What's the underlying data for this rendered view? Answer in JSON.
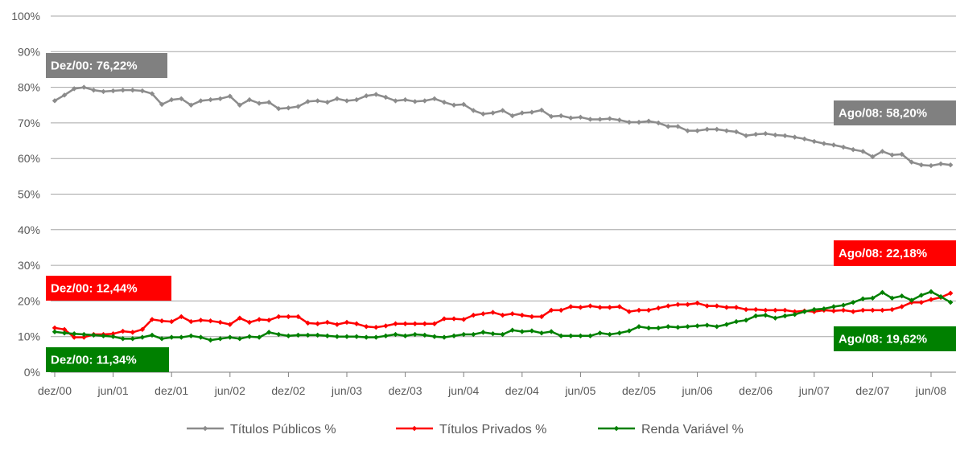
{
  "chart_data": {
    "type": "line",
    "title": "",
    "xlabel": "",
    "ylabel": "",
    "x_start": "dez/00",
    "x_end": "ago/08",
    "xtick_labels": [
      "dez/00",
      "jun/01",
      "dez/01",
      "jun/02",
      "dez/02",
      "jun/03",
      "dez/03",
      "jun/04",
      "dez/04",
      "jun/05",
      "dez/05",
      "jun/06",
      "dez/06",
      "jun/07",
      "dez/07",
      "jun/08"
    ],
    "ytick_labels": [
      "0%",
      "10%",
      "20%",
      "30%",
      "40%",
      "50%",
      "60%",
      "70%",
      "80%",
      "90%",
      "100%"
    ],
    "ylim": [
      0,
      100
    ],
    "grid": true,
    "legend_position": "bottom",
    "series": [
      {
        "name": "Títulos Públicos %",
        "color": "#8c8c8c",
        "values": [
          76.22,
          77.8,
          79.6,
          80.0,
          79.2,
          78.8,
          79.0,
          79.2,
          79.2,
          79.0,
          78.2,
          75.2,
          76.5,
          76.8,
          75.0,
          76.2,
          76.5,
          76.8,
          77.5,
          75.0,
          76.5,
          75.5,
          75.8,
          74.0,
          74.2,
          74.6,
          76.0,
          76.2,
          75.8,
          76.8,
          76.2,
          76.5,
          77.6,
          78.0,
          77.2,
          76.2,
          76.5,
          76.0,
          76.2,
          76.8,
          75.8,
          75.0,
          75.2,
          73.5,
          72.5,
          72.8,
          73.5,
          72.0,
          72.8,
          73.0,
          73.6,
          71.8,
          72.0,
          71.4,
          71.6,
          71.0,
          71.0,
          71.2,
          70.8,
          70.2,
          70.2,
          70.5,
          70.0,
          69.0,
          69.0,
          67.8,
          67.8,
          68.2,
          68.2,
          67.8,
          67.5,
          66.4,
          66.8,
          67.0,
          66.6,
          66.4,
          66.0,
          65.5,
          64.8,
          64.2,
          63.8,
          63.2,
          62.5,
          62.0,
          60.5,
          62.0,
          61.0,
          61.2,
          59.0,
          58.2,
          58.0,
          58.5,
          58.2
        ]
      },
      {
        "name": "Títulos Privados %",
        "color": "#ff0000",
        "values": [
          12.44,
          12.0,
          9.8,
          9.8,
          10.6,
          10.6,
          10.8,
          11.5,
          11.2,
          12.0,
          14.8,
          14.4,
          14.2,
          15.6,
          14.2,
          14.6,
          14.4,
          14.0,
          13.4,
          15.2,
          14.0,
          14.8,
          14.6,
          15.6,
          15.6,
          15.6,
          13.8,
          13.6,
          14.0,
          13.4,
          14.0,
          13.6,
          12.8,
          12.6,
          13.0,
          13.6,
          13.6,
          13.6,
          13.6,
          13.6,
          15.0,
          15.0,
          14.8,
          16.0,
          16.4,
          16.8,
          16.0,
          16.4,
          16.0,
          15.6,
          15.6,
          17.4,
          17.4,
          18.4,
          18.2,
          18.6,
          18.2,
          18.2,
          18.4,
          17.0,
          17.4,
          17.4,
          18.0,
          18.6,
          19.0,
          19.0,
          19.4,
          18.6,
          18.6,
          18.2,
          18.2,
          17.6,
          17.6,
          17.4,
          17.4,
          17.4,
          17.0,
          17.2,
          17.0,
          17.4,
          17.2,
          17.4,
          17.0,
          17.4,
          17.4,
          17.4,
          17.6,
          18.4,
          19.6,
          19.6,
          20.4,
          21.0,
          22.18
        ]
      },
      {
        "name": "Renda Variável %",
        "color": "#008000",
        "values": [
          11.34,
          11.0,
          10.8,
          10.6,
          10.4,
          10.2,
          10.0,
          9.4,
          9.4,
          9.8,
          10.4,
          9.4,
          9.8,
          9.8,
          10.2,
          9.8,
          9.0,
          9.4,
          9.8,
          9.4,
          10.0,
          9.8,
          11.2,
          10.6,
          10.2,
          10.4,
          10.4,
          10.4,
          10.2,
          10.0,
          10.0,
          10.0,
          9.8,
          9.8,
          10.2,
          10.6,
          10.2,
          10.6,
          10.4,
          10.0,
          9.8,
          10.2,
          10.6,
          10.6,
          11.2,
          10.8,
          10.6,
          11.8,
          11.4,
          11.6,
          11.0,
          11.4,
          10.2,
          10.2,
          10.2,
          10.2,
          11.0,
          10.6,
          11.0,
          11.6,
          12.8,
          12.4,
          12.4,
          12.8,
          12.6,
          12.8,
          13.0,
          13.2,
          12.8,
          13.4,
          14.2,
          14.6,
          15.8,
          16.0,
          15.2,
          15.8,
          16.2,
          17.0,
          17.6,
          17.8,
          18.4,
          18.8,
          19.6,
          20.6,
          20.8,
          22.4,
          20.8,
          21.4,
          20.2,
          21.6,
          22.6,
          21.2,
          19.62
        ]
      }
    ],
    "annotations": [
      {
        "text": "Dez/00: 76,22%",
        "color": "#808080"
      },
      {
        "text": "Ago/08: 58,20%",
        "color": "#808080"
      },
      {
        "text": "Dez/00: 12,44%",
        "color": "#ff0000"
      },
      {
        "text": "Ago/08: 22,18%",
        "color": "#ff0000"
      },
      {
        "text": "Dez/00: 11,34%",
        "color": "#008000"
      },
      {
        "text": "Ago/08: 19,62%",
        "color": "#008000"
      }
    ]
  }
}
